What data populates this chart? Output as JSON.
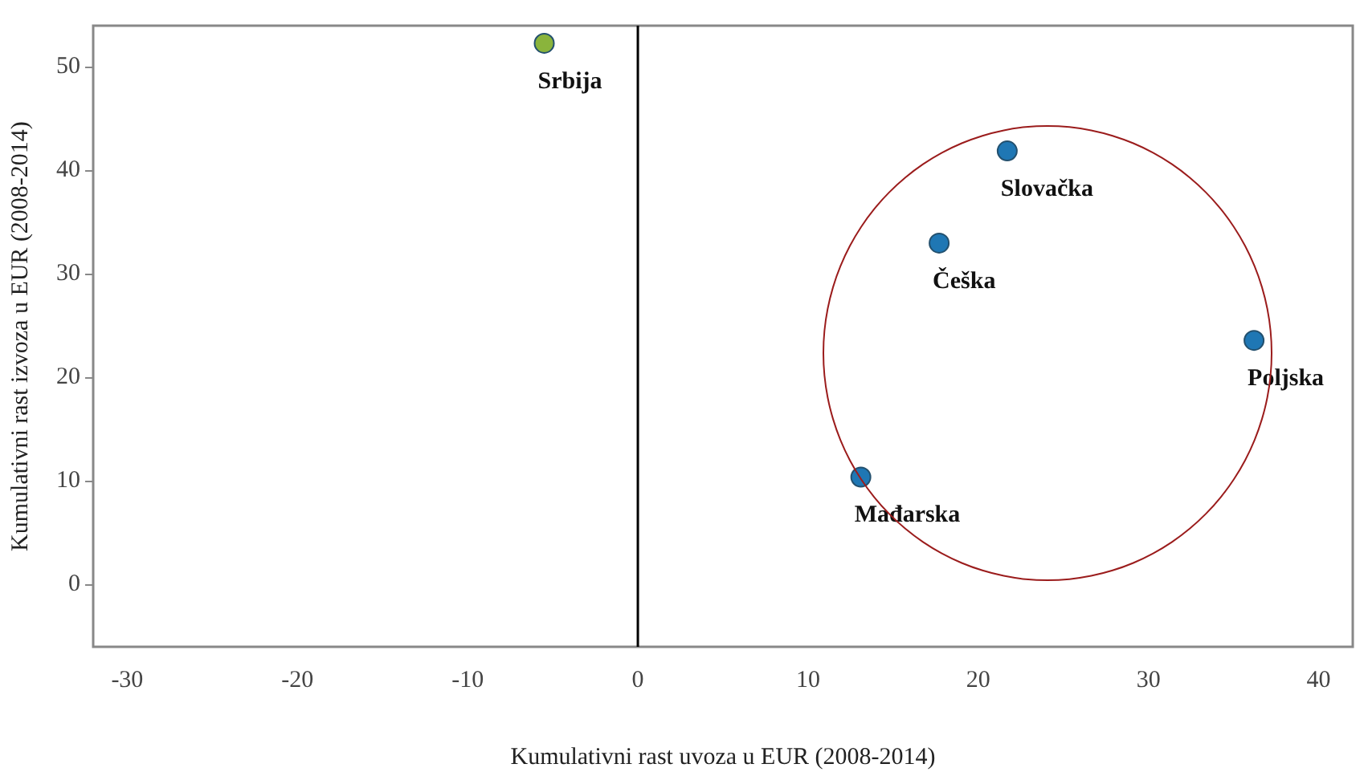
{
  "chart_data": {
    "type": "scatter",
    "xlabel": "Kumulativni rast uvoza u EUR (2008-2014)",
    "ylabel": "Kumulativni rast izvoza u EUR (2008-2014)",
    "xlim": [
      -32,
      42
    ],
    "xticks": [
      -30,
      -20,
      -10,
      0,
      10,
      20,
      30,
      40
    ],
    "ylim": [
      -6,
      54
    ],
    "yticks": [
      0,
      10,
      20,
      30,
      40,
      50
    ],
    "grid": false,
    "legend": false,
    "marker": "circle",
    "ref_lines": [
      {
        "axis": "x",
        "value": 0,
        "color": "#000000"
      }
    ],
    "series": [
      {
        "name": "Srbija",
        "color": "#8ab43c",
        "x": [
          -5.5
        ],
        "values": [
          52.3
        ]
      },
      {
        "name": "Slovačka",
        "color": "#1f77b4",
        "x": [
          21.7
        ],
        "values": [
          41.9
        ]
      },
      {
        "name": "Češka",
        "color": "#1f77b4",
        "x": [
          17.7
        ],
        "values": [
          33.0
        ]
      },
      {
        "name": "Poljska",
        "color": "#1f77b4",
        "x": [
          36.2
        ],
        "values": [
          23.6
        ]
      },
      {
        "name": "Mađarska",
        "color": "#1f77b4",
        "x": [
          13.1
        ],
        "values": [
          10.4
        ]
      }
    ]
  }
}
